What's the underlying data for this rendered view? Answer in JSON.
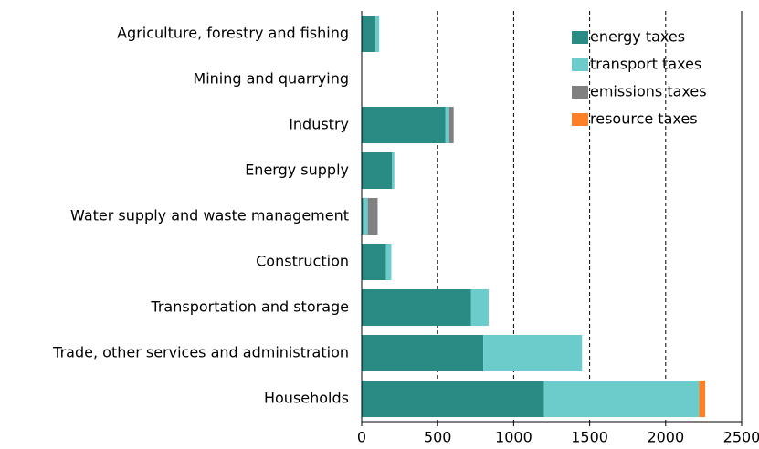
{
  "chart_data": {
    "type": "stacked_barh",
    "categories": [
      "Agriculture, forestry and fishing",
      "Mining and quarrying",
      "Industry",
      "Energy supply",
      "Water supply and waste management",
      "Construction",
      "Transportation and storage",
      "Trade, other services and administration",
      "Households"
    ],
    "series": [
      {
        "name": "energy taxes",
        "color": "#2a8a84",
        "values": [
          90,
          0,
          550,
          200,
          10,
          160,
          720,
          800,
          1200
        ]
      },
      {
        "name": "transport taxes",
        "color": "#6ccccc",
        "values": [
          25,
          0,
          25,
          15,
          30,
          35,
          115,
          650,
          1020
        ]
      },
      {
        "name": "emissions taxes",
        "color": "#808080",
        "values": [
          0,
          0,
          30,
          0,
          65,
          0,
          0,
          0,
          0
        ]
      },
      {
        "name": "resource taxes",
        "color": "#ff7f27",
        "values": [
          0,
          0,
          0,
          0,
          0,
          0,
          0,
          0,
          40
        ]
      }
    ],
    "xlim": [
      0,
      2500
    ],
    "xticks": [
      0,
      500,
      1000,
      1500,
      2000,
      2500
    ],
    "grid": true,
    "legend": "upper right"
  }
}
